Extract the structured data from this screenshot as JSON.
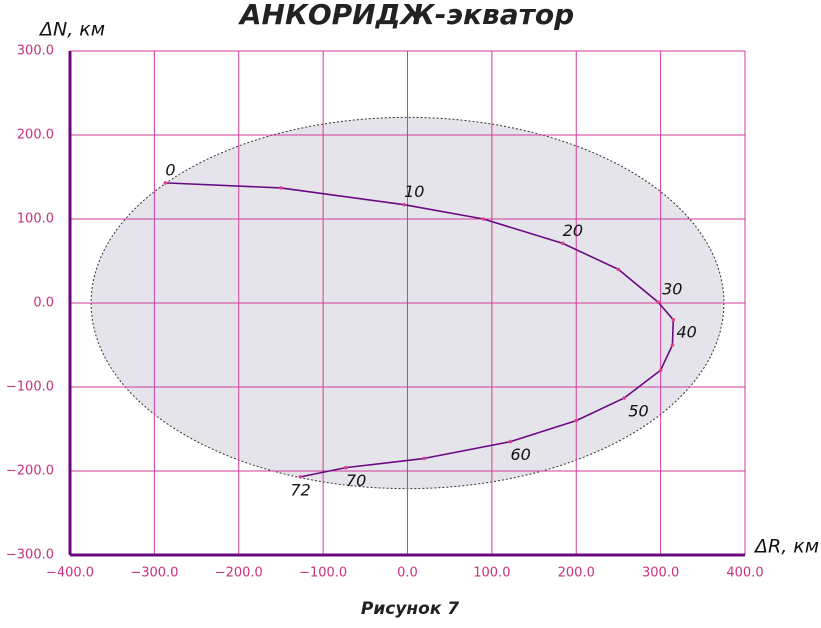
{
  "chart_data": {
    "type": "line",
    "title": "АНКОРИДЖ-экватор",
    "caption": "Рисунок 7",
    "x_label": "ΔR, км",
    "y_label": "ΔN, км",
    "xlim": [
      -400,
      400
    ],
    "ylim": [
      -300,
      300
    ],
    "xticks": [
      {
        "value": -400,
        "label": "−400.0"
      },
      {
        "value": -300,
        "label": "−300.0"
      },
      {
        "value": -200,
        "label": "−200.0"
      },
      {
        "value": -100,
        "label": "−100.0"
      },
      {
        "value": 0,
        "label": "0.0"
      },
      {
        "value": 100,
        "label": "100.0"
      },
      {
        "value": 200,
        "label": "200.0"
      },
      {
        "value": 300,
        "label": "300.0"
      },
      {
        "value": 400,
        "label": "400.0"
      }
    ],
    "yticks": [
      {
        "value": -300,
        "label": "−300.0"
      },
      {
        "value": -200,
        "label": "−200.0"
      },
      {
        "value": -100,
        "label": "−100.0"
      },
      {
        "value": 0,
        "label": "0.0"
      },
      {
        "value": 100,
        "label": "100.0"
      },
      {
        "value": 200,
        "label": "200.0"
      },
      {
        "value": 300,
        "label": "300.0"
      }
    ],
    "grid": true,
    "grid_color": "#d23c9b",
    "axis_color": "#6a0a7a",
    "ellipse": {
      "cx": 0,
      "cy": 0,
      "rx": 375,
      "ry": 221,
      "fill": "#e4e4ea"
    },
    "series": [
      {
        "color": "#6a0a82",
        "x": [
          -287,
          -150,
          -4,
          90,
          184,
          250,
          297,
          315,
          314,
          300,
          257,
          200,
          122,
          20,
          -73,
          -127
        ],
        "values": [
          143,
          137,
          117,
          100,
          71,
          40,
          1,
          -20,
          -50,
          -80,
          -113,
          -140,
          -165,
          -185,
          -196,
          -207
        ],
        "point_labels": [
          "0",
          null,
          "10",
          null,
          "20",
          null,
          "30",
          null,
          "40",
          null,
          "50",
          null,
          "60",
          null,
          "70",
          "72"
        ]
      }
    ]
  }
}
